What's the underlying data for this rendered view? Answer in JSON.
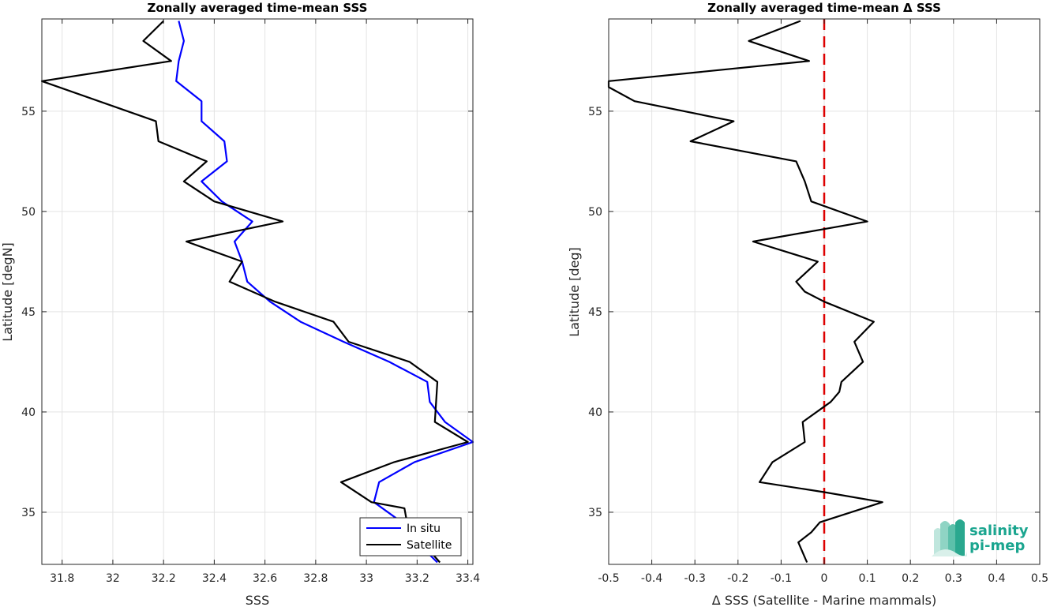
{
  "chart_data": [
    {
      "type": "line",
      "title": "Zonally averaged time-mean SSS",
      "xlabel": "SSS",
      "ylabel": "Latitude [degN]",
      "xlim": [
        31.72,
        33.42
      ],
      "ylim": [
        32.4,
        59.6
      ],
      "xticks": [
        31.8,
        32,
        32.2,
        32.4,
        32.6,
        32.8,
        33,
        33.2,
        33.4
      ],
      "yticks": [
        35,
        40,
        45,
        50,
        55
      ],
      "grid": true,
      "legend_position": "bottom-right",
      "series": [
        {
          "name": "In situ",
          "color": "#0000ff",
          "points": [
            [
              32.26,
              59.5
            ],
            [
              32.28,
              58.5
            ],
            [
              32.26,
              57.5
            ],
            [
              32.25,
              56.5
            ],
            [
              32.35,
              55.5
            ],
            [
              32.35,
              54.5
            ],
            [
              32.44,
              53.5
            ],
            [
              32.45,
              52.5
            ],
            [
              32.35,
              51.5
            ],
            [
              32.43,
              50.5
            ],
            [
              32.55,
              49.5
            ],
            [
              32.48,
              48.5
            ],
            [
              32.51,
              47.5
            ],
            [
              32.53,
              46.5
            ],
            [
              32.62,
              45.5
            ],
            [
              32.74,
              44.5
            ],
            [
              32.91,
              43.5
            ],
            [
              33.09,
              42.5
            ],
            [
              33.24,
              41.5
            ],
            [
              33.25,
              40.5
            ],
            [
              33.31,
              39.5
            ],
            [
              33.42,
              38.5
            ],
            [
              33.19,
              37.5
            ],
            [
              33.05,
              36.5
            ],
            [
              33.03,
              35.5
            ],
            [
              33.14,
              34.5
            ],
            [
              33.2,
              33.5
            ],
            [
              33.28,
              32.5
            ]
          ]
        },
        {
          "name": "Satellite",
          "color": "#000000",
          "points": [
            [
              32.2,
              59.5
            ],
            [
              32.12,
              58.5
            ],
            [
              32.23,
              57.5
            ],
            [
              31.72,
              56.5
            ],
            [
              32.17,
              54.5
            ],
            [
              32.18,
              53.5
            ],
            [
              32.37,
              52.5
            ],
            [
              32.28,
              51.5
            ],
            [
              32.4,
              50.5
            ],
            [
              32.67,
              49.5
            ],
            [
              32.29,
              48.5
            ],
            [
              32.51,
              47.5
            ],
            [
              32.46,
              46.5
            ],
            [
              32.64,
              45.5
            ],
            [
              32.87,
              44.5
            ],
            [
              32.93,
              43.5
            ],
            [
              33.17,
              42.5
            ],
            [
              33.28,
              41.5
            ],
            [
              33.27,
              39.5
            ],
            [
              33.4,
              38.5
            ],
            [
              33.11,
              37.5
            ],
            [
              32.9,
              36.5
            ],
            [
              33.02,
              35.5
            ],
            [
              33.15,
              35.2
            ],
            [
              33.16,
              34.5
            ],
            [
              33.22,
              33.5
            ],
            [
              33.29,
              32.5
            ]
          ]
        }
      ]
    },
    {
      "type": "line",
      "title": "Zonally averaged time-mean Δ SSS",
      "xlabel": "Δ SSS (Satellite - Marine mammals)",
      "ylabel": "Latitude [deg]",
      "xlim": [
        -0.5,
        0.5
      ],
      "ylim": [
        32.4,
        59.6
      ],
      "xticks": [
        -0.5,
        -0.4,
        -0.3,
        -0.2,
        -0.1,
        0,
        0.1,
        0.2,
        0.3,
        0.4,
        0.5
      ],
      "yticks": [
        35,
        40,
        45,
        50,
        55
      ],
      "grid": true,
      "reference_line": {
        "x": 0,
        "color": "#dd0000",
        "style": "dashed"
      },
      "series": [
        {
          "color": "#000000",
          "points": [
            [
              -0.055,
              59.5
            ],
            [
              -0.175,
              58.5
            ],
            [
              -0.035,
              57.5
            ],
            [
              -0.5,
              56.5
            ],
            [
              -0.5,
              56.2
            ],
            [
              -0.44,
              55.5
            ],
            [
              -0.21,
              54.5
            ],
            [
              -0.31,
              53.5
            ],
            [
              -0.065,
              52.5
            ],
            [
              -0.045,
              51.5
            ],
            [
              -0.03,
              50.5
            ],
            [
              0.1,
              49.5
            ],
            [
              -0.165,
              48.5
            ],
            [
              -0.015,
              47.5
            ],
            [
              -0.065,
              46.5
            ],
            [
              -0.045,
              46.0
            ],
            [
              0.0,
              45.5
            ],
            [
              0.115,
              44.5
            ],
            [
              0.07,
              43.5
            ],
            [
              0.09,
              42.5
            ],
            [
              0.04,
              41.5
            ],
            [
              0.035,
              41.0
            ],
            [
              0.015,
              40.5
            ],
            [
              -0.05,
              39.5
            ],
            [
              -0.045,
              38.5
            ],
            [
              -0.12,
              37.5
            ],
            [
              -0.15,
              36.5
            ],
            [
              0.0,
              36.0
            ],
            [
              0.135,
              35.5
            ],
            [
              -0.01,
              34.5
            ],
            [
              -0.03,
              34.0
            ],
            [
              -0.06,
              33.5
            ],
            [
              -0.04,
              32.5
            ]
          ]
        }
      ]
    }
  ],
  "logo": {
    "line1": "salinity",
    "line2": "pi-mep",
    "color": "#1aa58f"
  }
}
